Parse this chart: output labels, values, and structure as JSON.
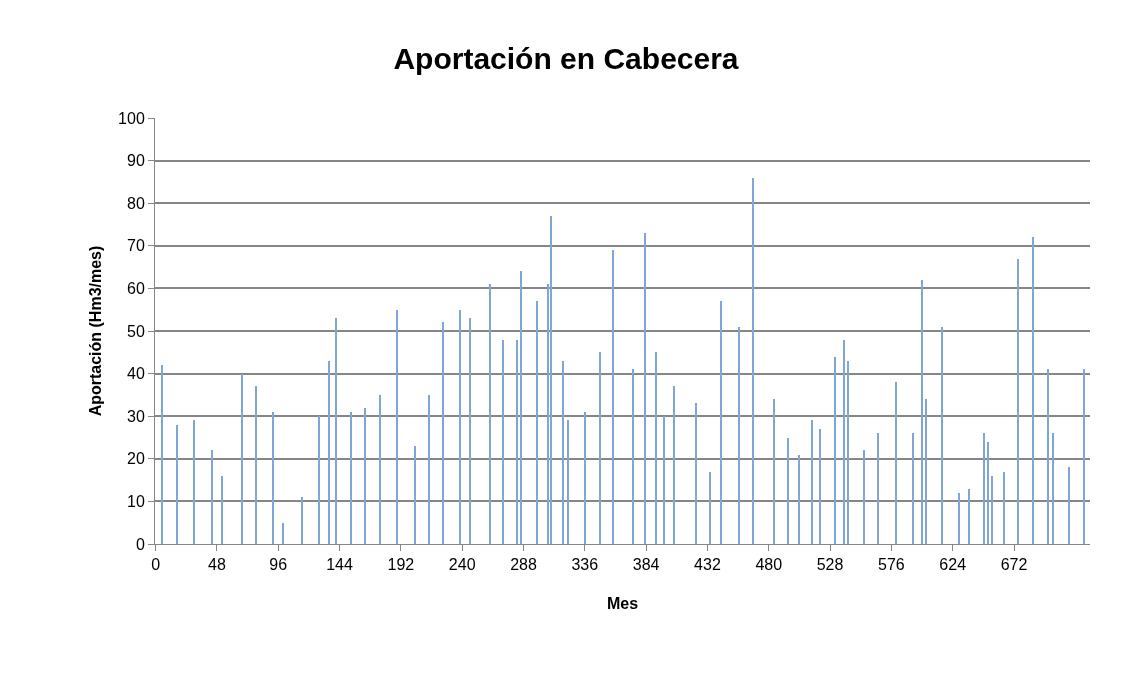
{
  "chart_data": {
    "type": "bar",
    "title": "Aportación en Cabecera",
    "xlabel": "Mes",
    "ylabel": "Aportación (Hm3/mes)",
    "x": [
      5,
      17,
      30,
      44,
      52,
      68,
      79,
      92,
      100,
      115,
      128,
      136,
      141,
      153,
      164,
      176,
      189,
      203,
      214,
      225,
      238,
      246,
      262,
      272,
      283,
      286,
      299,
      307,
      310,
      319,
      323,
      336,
      348,
      358,
      374,
      383,
      392,
      398,
      406,
      423,
      434,
      443,
      457,
      468,
      484,
      495,
      504,
      514,
      520,
      532,
      539,
      542,
      555,
      566,
      580,
      593,
      600,
      603,
      616,
      629,
      637,
      649,
      652,
      655,
      664,
      675,
      687,
      699,
      703,
      715,
      727
    ],
    "values": [
      42,
      28,
      29,
      22,
      16,
      40,
      37,
      31,
      5,
      11,
      30,
      43,
      53,
      31,
      32,
      35,
      55,
      23,
      35,
      52,
      55,
      53,
      61,
      48,
      48,
      64,
      57,
      61,
      77,
      43,
      29,
      31,
      45,
      69,
      41,
      73,
      45,
      30,
      37,
      33,
      17,
      57,
      51,
      86,
      34,
      25,
      21,
      29,
      27,
      44,
      48,
      43,
      22,
      26,
      38,
      26,
      62,
      34,
      51,
      12,
      13,
      26,
      24,
      16,
      17,
      67,
      72,
      41,
      26,
      18,
      41
    ],
    "color": "#7fa6d6",
    "xlim": [
      -0.5,
      731.5
    ],
    "xticks": [
      0,
      48,
      96,
      144,
      192,
      240,
      288,
      336,
      384,
      432,
      480,
      528,
      576,
      624,
      672
    ],
    "ylim": [
      0,
      100
    ],
    "yticks": [
      0,
      10,
      20,
      30,
      40,
      50,
      60,
      70,
      80,
      90,
      100
    ],
    "grid": "y"
  }
}
